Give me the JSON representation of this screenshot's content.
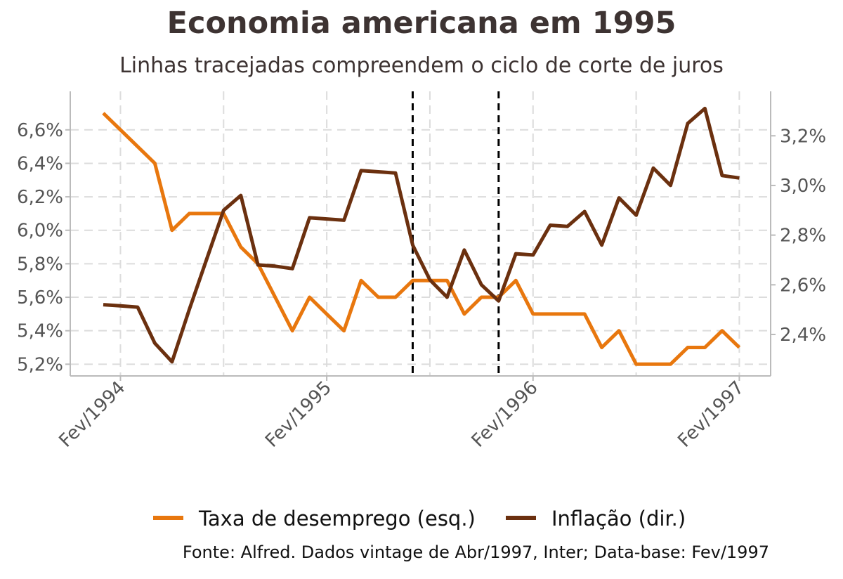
{
  "title": "Economia americana em 1995",
  "subtitle": "Linhas tracejadas compreendem o ciclo de corte de juros",
  "caption": "Fonte: Alfred. Dados vintage de Abr/1997, Inter; Data-base: Fev/1997",
  "chart_data": {
    "type": "line",
    "dual_axis": true,
    "x": [
      "1994-01",
      "1994-02",
      "1994-03",
      "1994-04",
      "1994-05",
      "1994-06",
      "1994-07",
      "1994-08",
      "1994-09",
      "1994-10",
      "1994-11",
      "1994-12",
      "1995-01",
      "1995-02",
      "1995-03",
      "1995-04",
      "1995-05",
      "1995-06",
      "1995-07",
      "1995-08",
      "1995-09",
      "1995-10",
      "1995-11",
      "1995-12",
      "1996-01",
      "1996-02",
      "1996-03",
      "1996-04",
      "1996-05",
      "1996-06",
      "1996-07",
      "1996-08",
      "1996-09",
      "1996-10",
      "1996-11",
      "1996-12",
      "1997-01",
      "1997-02"
    ],
    "x_ticks": [
      "Fev/1994",
      "Fev/1995",
      "Fev/1996",
      "Fev/1997"
    ],
    "series": [
      {
        "name": "Taxa de desemprego (esq.)",
        "axis": "left",
        "color": "#e8770e",
        "values": [
          6.7,
          6.6,
          6.5,
          6.4,
          6.0,
          6.1,
          6.1,
          6.1,
          5.9,
          5.8,
          5.6,
          5.4,
          5.6,
          5.5,
          5.4,
          5.7,
          5.6,
          5.6,
          5.7,
          5.7,
          5.7,
          5.5,
          5.6,
          5.6,
          5.7,
          5.5,
          5.5,
          5.5,
          5.5,
          5.3,
          5.4,
          5.2,
          5.2,
          5.2,
          5.3,
          5.3,
          5.4,
          5.3
        ]
      },
      {
        "name": "Inflação (dir.)",
        "axis": "right",
        "color": "#6b300f",
        "values": [
          2.52,
          2.515,
          2.51,
          2.365,
          2.29,
          2.5,
          2.7,
          2.9,
          2.96,
          2.68,
          2.675,
          2.665,
          2.87,
          2.865,
          2.86,
          3.06,
          3.055,
          3.05,
          2.76,
          2.62,
          2.55,
          2.74,
          2.6,
          2.535,
          2.725,
          2.72,
          2.84,
          2.835,
          2.895,
          2.76,
          2.95,
          2.88,
          3.07,
          3.0,
          3.25,
          3.31,
          3.04,
          3.03
        ]
      }
    ],
    "y_left": {
      "ticks": [
        "5,2%",
        "5,4%",
        "5,6%",
        "5,8%",
        "6,0%",
        "6,2%",
        "6,4%",
        "6,6%"
      ],
      "ylim": [
        5.13,
        6.83
      ]
    },
    "y_right": {
      "ticks": [
        "2,4%",
        "2,6%",
        "2,8%",
        "3,0%",
        "3,2%"
      ],
      "ylim": [
        2.233,
        3.379
      ]
    },
    "vlines": [
      "1995-07",
      "1995-12"
    ],
    "grid": true,
    "legend_position": "bottom"
  }
}
